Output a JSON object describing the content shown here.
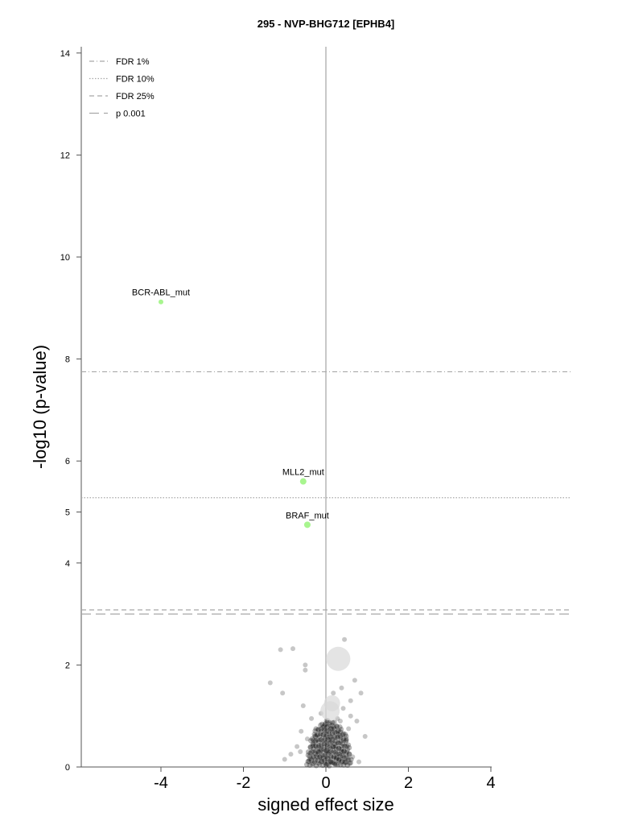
{
  "chart_data": {
    "type": "scatter",
    "title": "295 - NVP-BHG712 [EPHB4]",
    "xlabel": "signed effect size",
    "ylabel": "-log10 (p-value)",
    "xlim": [
      -5.9,
      5.9
    ],
    "ylim": [
      0,
      14.2
    ],
    "xticks": [
      -4,
      -2,
      0,
      2,
      4
    ],
    "xtick_labels": [
      "-4",
      "-2",
      "0",
      "2",
      "4"
    ],
    "yticks": [
      0,
      2,
      4,
      5,
      6,
      8,
      10,
      12,
      14
    ],
    "ytick_labels": [
      "0",
      "2",
      "4",
      "5",
      "6",
      "8",
      "10",
      "12",
      "14"
    ],
    "grid": false,
    "legend_position": "top-left",
    "thresholds": [
      {
        "name": "FDR 1%",
        "y": 7.75,
        "style": "dashdot"
      },
      {
        "name": "FDR 10%",
        "y": 5.28,
        "style": "dotted"
      },
      {
        "name": "FDR 25%",
        "y": 3.08,
        "style": "dashed"
      },
      {
        "name": "p 0.001",
        "y": 3.0,
        "style": "longdash"
      }
    ],
    "highlighted_points": [
      {
        "label": "BCR-ABL_mut",
        "x": -4.0,
        "y": 9.12,
        "color": "#a8f58f"
      },
      {
        "label": "MLL2_mut",
        "x": -0.55,
        "y": 5.6,
        "color": "#a8f58f"
      },
      {
        "label": "BRAF_mut",
        "x": -0.45,
        "y": 4.75,
        "color": "#a8f58f"
      }
    ],
    "large_points": [
      {
        "x": 0.3,
        "y": 2.12
      },
      {
        "x": 0.15,
        "y": 1.25
      },
      {
        "x": 0.1,
        "y": 1.1
      }
    ],
    "background_points": [
      [
        -1.1,
        2.3
      ],
      [
        -0.8,
        2.32
      ],
      [
        -0.5,
        2.0
      ],
      [
        -0.5,
        1.9
      ],
      [
        0.45,
        2.5
      ],
      [
        -1.35,
        1.65
      ],
      [
        -1.05,
        1.45
      ],
      [
        0.7,
        1.7
      ],
      [
        0.85,
        1.45
      ],
      [
        0.95,
        0.6
      ],
      [
        -1.0,
        0.15
      ],
      [
        -0.85,
        0.25
      ],
      [
        -0.7,
        0.4
      ],
      [
        -0.6,
        0.7
      ],
      [
        -0.55,
        1.2
      ],
      [
        0.6,
        1.3
      ],
      [
        0.75,
        0.9
      ],
      [
        0.5,
        0.55
      ],
      [
        0.65,
        0.2
      ],
      [
        0.8,
        0.1
      ],
      [
        -0.35,
        0.95
      ],
      [
        -0.25,
        0.6
      ],
      [
        -0.15,
        0.35
      ],
      [
        -0.1,
        0.15
      ],
      [
        0.0,
        0.05
      ],
      [
        0.05,
        0.3
      ],
      [
        0.1,
        0.55
      ],
      [
        0.15,
        0.75
      ],
      [
        0.2,
        0.4
      ],
      [
        0.25,
        0.2
      ],
      [
        0.3,
        0.65
      ],
      [
        0.35,
        0.9
      ],
      [
        0.4,
        0.3
      ],
      [
        0.45,
        0.1
      ],
      [
        -0.05,
        0.8
      ],
      [
        -0.2,
        0.25
      ],
      [
        -0.3,
        0.45
      ],
      [
        -0.4,
        0.15
      ],
      [
        0.12,
        0.1
      ],
      [
        0.22,
        0.05
      ],
      [
        0.32,
        0.15
      ],
      [
        0.28,
        0.95
      ],
      [
        0.18,
        1.45
      ],
      [
        0.38,
        1.55
      ],
      [
        0.42,
        1.15
      ],
      [
        -0.45,
        0.55
      ],
      [
        -0.62,
        0.3
      ],
      [
        0.55,
        0.75
      ],
      [
        0.6,
        1.0
      ],
      [
        -0.12,
        1.05
      ]
    ]
  }
}
